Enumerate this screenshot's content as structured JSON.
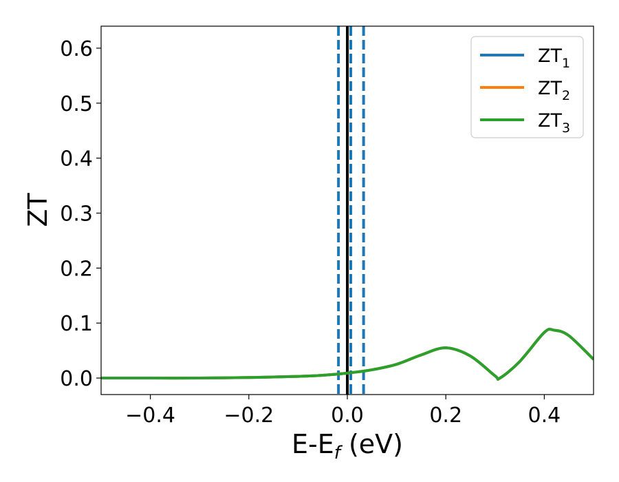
{
  "chart_data": {
    "type": "line",
    "title": "",
    "xlabel": {
      "base": "E-E",
      "sub": "f",
      "suffix": " (eV)"
    },
    "ylabel": "ZT",
    "xlim": [
      -0.5,
      0.5
    ],
    "ylim": [
      -0.03,
      0.64
    ],
    "x_ticks": [
      -0.4,
      -0.2,
      0.0,
      0.2,
      0.4
    ],
    "x_tick_labels": [
      "−0.4",
      "−0.2",
      "0.0",
      "0.2",
      "0.4"
    ],
    "y_ticks": [
      0.0,
      0.1,
      0.2,
      0.3,
      0.4,
      0.5,
      0.6
    ],
    "y_tick_labels": [
      "0.0",
      "0.1",
      "0.2",
      "0.3",
      "0.4",
      "0.5",
      "0.6"
    ],
    "grid": false,
    "legend_position": "top-right",
    "series": [
      {
        "name": "ZT",
        "sub": "1",
        "color": "#1f77b4",
        "x": [
          -0.5,
          -0.4,
          -0.3,
          -0.2,
          -0.1,
          -0.05,
          0.0,
          0.05,
          0.1,
          0.15,
          0.2,
          0.25,
          0.3,
          0.31,
          0.35,
          0.4,
          0.42,
          0.45,
          0.5
        ],
        "y": [
          0.0,
          0.0,
          0.0,
          0.001,
          0.003,
          0.005,
          0.009,
          0.015,
          0.025,
          0.042,
          0.055,
          0.04,
          0.004,
          0.0,
          0.03,
          0.083,
          0.087,
          0.077,
          0.034
        ]
      },
      {
        "name": "ZT",
        "sub": "2",
        "color": "#ff7f0e",
        "x": [
          -0.5,
          -0.4,
          -0.3,
          -0.2,
          -0.1,
          -0.05,
          0.0,
          0.05,
          0.1,
          0.15,
          0.2,
          0.25,
          0.3,
          0.31,
          0.35,
          0.4,
          0.42,
          0.45,
          0.5
        ],
        "y": [
          0.0,
          0.0,
          0.0,
          0.001,
          0.003,
          0.005,
          0.009,
          0.015,
          0.025,
          0.042,
          0.055,
          0.04,
          0.004,
          0.0,
          0.03,
          0.083,
          0.087,
          0.077,
          0.034
        ]
      },
      {
        "name": "ZT",
        "sub": "3",
        "color": "#2ca02c",
        "x": [
          -0.5,
          -0.4,
          -0.3,
          -0.2,
          -0.1,
          -0.05,
          0.0,
          0.05,
          0.1,
          0.15,
          0.2,
          0.25,
          0.3,
          0.31,
          0.35,
          0.4,
          0.42,
          0.45,
          0.5
        ],
        "y": [
          0.0,
          0.0,
          0.0,
          0.001,
          0.003,
          0.005,
          0.009,
          0.015,
          0.025,
          0.042,
          0.055,
          0.04,
          0.004,
          0.0,
          0.03,
          0.083,
          0.087,
          0.077,
          0.034
        ]
      }
    ],
    "vertical_lines": [
      {
        "x": -0.018,
        "style": "dashed",
        "color": "#1f77b4"
      },
      {
        "x": 0.0,
        "style": "solid",
        "color": "#000000"
      },
      {
        "x": 0.007,
        "style": "dashed",
        "color": "#1f77b4"
      },
      {
        "x": 0.033,
        "style": "dashed",
        "color": "#1f77b4"
      }
    ]
  }
}
